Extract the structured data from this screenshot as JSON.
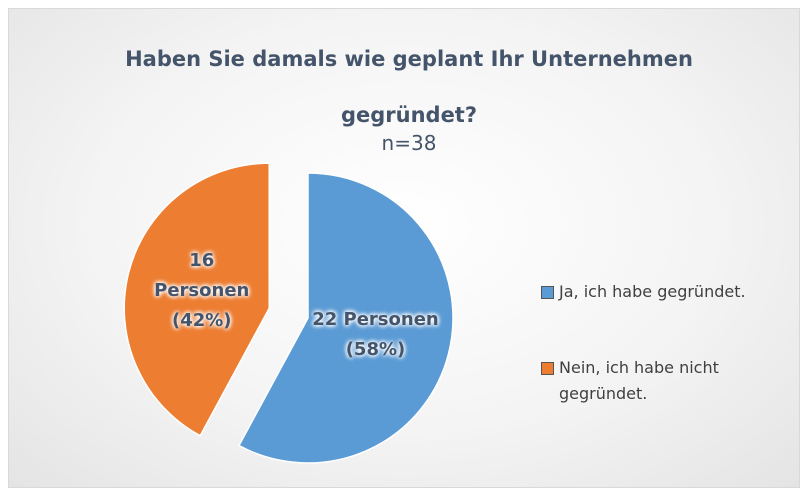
{
  "chart_data": {
    "type": "pie",
    "title": "Haben Sie damals wie geplant Ihr Unternehmen gegründet?",
    "subtitle": "n=38",
    "categories": [
      "Ja, ich habe gegründet.",
      "Nein, ich habe nicht gegründet."
    ],
    "values": [
      22,
      16
    ],
    "value_labels": [
      "22 Personen (58%)",
      "16 Personen (42%)"
    ],
    "colors": [
      "#5b9bd5",
      "#ed7d31"
    ],
    "legend": "right"
  }
}
